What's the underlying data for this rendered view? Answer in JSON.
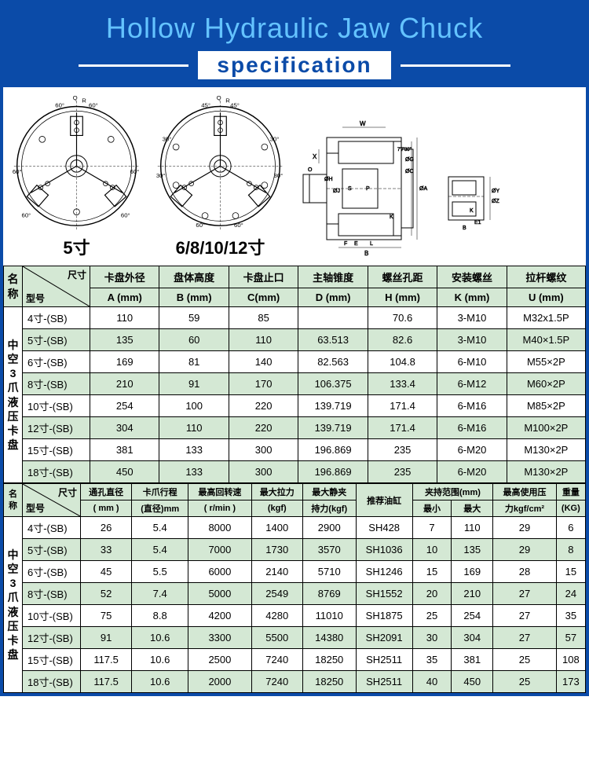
{
  "header": {
    "title": "Hollow Hydraulic Jaw Chuck",
    "subtitle": "specification"
  },
  "diagrams": {
    "label1": "5寸",
    "label2": "6/8/10/12寸",
    "angles_5": [
      "60°",
      "60°",
      "60°",
      "60°",
      "60°",
      "60°"
    ],
    "angles_6": [
      "45°",
      "45°",
      "30°",
      "30°",
      "60°",
      "60°",
      "30°",
      "30°"
    ],
    "side_labels": [
      "Q",
      "R",
      "W",
      "X",
      "O",
      "S",
      "P",
      "K",
      "F",
      "E",
      "L",
      "B",
      "ØH",
      "ØJ",
      "ØG",
      "ØC",
      "ØA",
      "7'7'30''",
      "B",
      "E1",
      "K",
      "ØY",
      "ØZ"
    ]
  },
  "table1": {
    "name_label": "名称",
    "vert_label": "中空3爪液压卡盘",
    "corner_top": "尺寸",
    "corner_bot": "型号",
    "columns": [
      {
        "h1": "卡盘外径",
        "h2": "A  (mm)"
      },
      {
        "h1": "盘体高度",
        "h2": "B  (mm)"
      },
      {
        "h1": "卡盘止口",
        "h2": "C(mm)"
      },
      {
        "h1": "主轴锥度",
        "h2": "D  (mm)"
      },
      {
        "h1": "螺丝孔距",
        "h2": "H  (mm)"
      },
      {
        "h1": "安装螺丝",
        "h2": "K  (mm)"
      },
      {
        "h1": "拉杆螺纹",
        "h2": "U (mm)"
      }
    ],
    "rows": [
      {
        "m": "4寸-(SB)",
        "v": [
          "110",
          "59",
          "85",
          "",
          "70.6",
          "3-M10",
          "M32x1.5P"
        ],
        "g": false
      },
      {
        "m": "5寸-(SB)",
        "v": [
          "135",
          "60",
          "110",
          "63.513",
          "82.6",
          "3-M10",
          "M40×1.5P"
        ],
        "g": true
      },
      {
        "m": "6寸-(SB)",
        "v": [
          "169",
          "81",
          "140",
          "82.563",
          "104.8",
          "6-M10",
          "M55×2P"
        ],
        "g": false
      },
      {
        "m": "8寸-(SB)",
        "v": [
          "210",
          "91",
          "170",
          "106.375",
          "133.4",
          "6-M12",
          "M60×2P"
        ],
        "g": true
      },
      {
        "m": "10寸-(SB)",
        "v": [
          "254",
          "100",
          "220",
          "139.719",
          "171.4",
          "6-M16",
          "M85×2P"
        ],
        "g": false
      },
      {
        "m": "12寸-(SB)",
        "v": [
          "304",
          "110",
          "220",
          "139.719",
          "171.4",
          "6-M16",
          "M100×2P"
        ],
        "g": true
      },
      {
        "m": "15寸-(SB)",
        "v": [
          "381",
          "133",
          "300",
          "196.869",
          "235",
          "6-M20",
          "M130×2P"
        ],
        "g": false
      },
      {
        "m": "18寸-(SB)",
        "v": [
          "450",
          "133",
          "300",
          "196.869",
          "235",
          "6-M20",
          "M130×2P"
        ],
        "g": true
      }
    ]
  },
  "table2": {
    "name_label": "名称",
    "vert_label": "中空3爪液压卡盘",
    "corner_top": "尺寸",
    "corner_bot": "型号",
    "columns": [
      {
        "h1": "通孔直径",
        "h2": "( mm )",
        "span": 1
      },
      {
        "h1": "卡爪行程",
        "h2": "(直径)mm",
        "span": 1
      },
      {
        "h1": "最高回转速",
        "h2": "( r/min )",
        "span": 1
      },
      {
        "h1": "最大拉力",
        "h2": "(kgf)",
        "span": 1
      },
      {
        "h1": "最大静夹",
        "h2": "持力(kgf)",
        "span": 1
      },
      {
        "h1": "推荐油缸",
        "h2": "",
        "span": 1
      },
      {
        "h1": "夹持范围(mm)",
        "h2": "",
        "span": 2,
        "sub": [
          "最小",
          "最大"
        ]
      },
      {
        "h1": "最高使用压",
        "h2": "力kgf/cm²",
        "span": 1
      },
      {
        "h1": "重量",
        "h2": "(KG)",
        "span": 1
      }
    ],
    "rows": [
      {
        "m": "4寸-(SB)",
        "v": [
          "26",
          "5.4",
          "8000",
          "1400",
          "2900",
          "SH428",
          "7",
          "110",
          "29",
          "6"
        ],
        "g": false
      },
      {
        "m": "5寸-(SB)",
        "v": [
          "33",
          "5.4",
          "7000",
          "1730",
          "3570",
          "SH1036",
          "10",
          "135",
          "29",
          "8"
        ],
        "g": true
      },
      {
        "m": "6寸-(SB)",
        "v": [
          "45",
          "5.5",
          "6000",
          "2140",
          "5710",
          "SH1246",
          "15",
          "169",
          "28",
          "15"
        ],
        "g": false
      },
      {
        "m": "8寸-(SB)",
        "v": [
          "52",
          "7.4",
          "5000",
          "2549",
          "8769",
          "SH1552",
          "20",
          "210",
          "27",
          "24"
        ],
        "g": true
      },
      {
        "m": "10寸-(SB)",
        "v": [
          "75",
          "8.8",
          "4200",
          "4280",
          "11010",
          "SH1875",
          "25",
          "254",
          "27",
          "35"
        ],
        "g": false
      },
      {
        "m": "12寸-(SB)",
        "v": [
          "91",
          "10.6",
          "3300",
          "5500",
          "14380",
          "SH2091",
          "30",
          "304",
          "27",
          "57"
        ],
        "g": true
      },
      {
        "m": "15寸-(SB)",
        "v": [
          "117.5",
          "10.6",
          "2500",
          "7240",
          "18250",
          "SH2511",
          "35",
          "381",
          "25",
          "108"
        ],
        "g": false
      },
      {
        "m": "18寸-(SB)",
        "v": [
          "117.5",
          "10.6",
          "2000",
          "7240",
          "18250",
          "SH2511",
          "40",
          "450",
          "25",
          "173"
        ],
        "g": true
      }
    ]
  },
  "colors": {
    "header_bg": "#0b4ba8",
    "title_color": "#64c3ff",
    "row_green": "#d4e8d4",
    "border": "#000000"
  }
}
